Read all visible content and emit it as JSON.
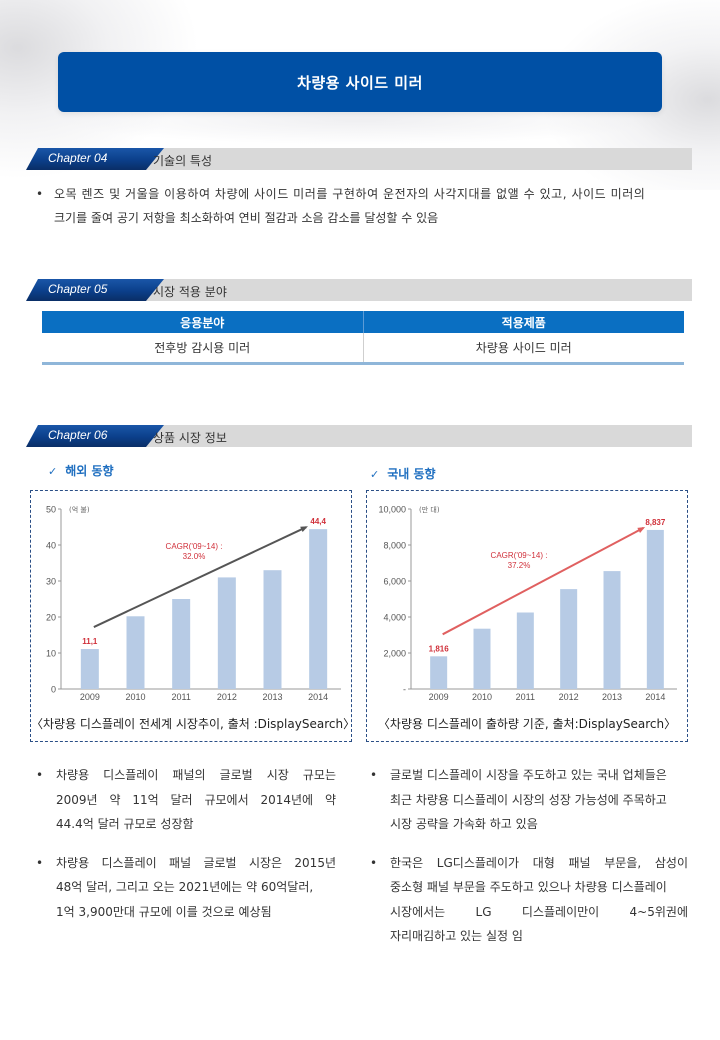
{
  "header": {
    "title": "차량용 사이드 미러"
  },
  "chapters": [
    {
      "badge": "Chapter 04",
      "title": "기술의 특성"
    },
    {
      "badge": "Chapter 05",
      "title": "시장 적용 분야"
    },
    {
      "badge": "Chapter 06",
      "title": "상품 시장 정보"
    }
  ],
  "tech": {
    "bullet": "•",
    "line1": "오목 렌즈 및 거울을 이용하여 차량에 사이드 미러를 구현하여 운전자의 사각지대를 없앨 수 있고, 사이드 미러의",
    "line2": "크기를 줄여 공기 저항을 최소화하여 연비 절감과 소음 감소를 달성할 수 있음"
  },
  "app_table": {
    "headers": [
      "응용분야",
      "적용제품"
    ],
    "rows": [
      [
        "전후방 감시용 미러",
        "차량용 사이드 미러"
      ]
    ]
  },
  "market": {
    "overseas": {
      "check": "✓",
      "label": "해외 동향"
    },
    "domestic": {
      "check": "✓",
      "label": "국내 동향"
    },
    "left_bullets": [
      {
        "lines": [
          "차량용 디스플레이 패널의 글로벌 시장 규모는",
          "2009년 약 11억 달러 규모에서 2014년에 약",
          "44.4억 달러 규모로 성장함"
        ]
      },
      {
        "lines": [
          "차량용 디스플레이 패널 글로벌 시장은 2015년",
          "48억 달러, 그리고 오는 2021년에는 약 60억달러,",
          "1억 3,900만대 규모에 이를 것으로 예상됨"
        ]
      }
    ],
    "right_bullets": [
      {
        "lines": [
          "글로벌 디스플레이 시장을 주도하고 있는 국내 업체들은",
          "최근 차량용 디스플레이 시장의 성장 가능성에 주목하고",
          "시장 공략을 가속화 하고 있음"
        ]
      },
      {
        "lines": [
          "한국은 LG디스플레이가 대형 패널 부문을, 삼성이",
          "중소형 패널 부문을 주도하고 있으나 차량용 디스플레이",
          "시장에서는  LG 디스플레이만이  4~5위권에",
          "자리매김하고 있는 실정 임"
        ]
      }
    ],
    "bullet": "•"
  },
  "chart_data": [
    {
      "type": "bar",
      "title": "",
      "caption": "〈차량용 디스플레이 전세계 시장추이, 출처 :DisplaySearch〉",
      "unit_label": "(억 불)",
      "categories": [
        "2009",
        "2010",
        "2011",
        "2012",
        "2013",
        "2014"
      ],
      "values": [
        11.1,
        20.2,
        25.0,
        31.0,
        33.0,
        44.4
      ],
      "data_labels": {
        "2009": "11,1",
        "2014": "44,4"
      },
      "annotation": [
        "CAGR('09~14) :",
        "32.0%"
      ],
      "arrow_color": "#555555",
      "yticks": [
        "0",
        "10",
        "20",
        "30",
        "40",
        "50"
      ],
      "ylim": [
        0,
        50
      ],
      "bar_color": "#b7cbe5",
      "label_color": "#d0303a",
      "grid": false
    },
    {
      "type": "bar",
      "title": "",
      "caption": "〈차량용 디스플레이 출하량 기준, 출처:DisplaySearch〉",
      "unit_label": "(만 대)",
      "categories": [
        "2009",
        "2010",
        "2011",
        "2012",
        "2013",
        "2014"
      ],
      "values": [
        1816,
        3350,
        4250,
        5550,
        6550,
        8837
      ],
      "data_labels": {
        "2009": "1,816",
        "2014": "8,837"
      },
      "annotation": [
        "CAGR('09~14) :",
        "37.2%"
      ],
      "arrow_color": "#e06060",
      "yticks": [
        "-",
        "2,000",
        "4,000",
        "6,000",
        "8,000",
        "10,000"
      ],
      "ylim": [
        0,
        10000
      ],
      "bar_color": "#b7cbe5",
      "label_color": "#d0303a",
      "grid": false
    }
  ],
  "colors": {
    "brand_blue": "#0050a5",
    "table_header": "#0a6fc2",
    "subhead": "#1f6fc0",
    "band_gray": "#d9d9d9"
  }
}
